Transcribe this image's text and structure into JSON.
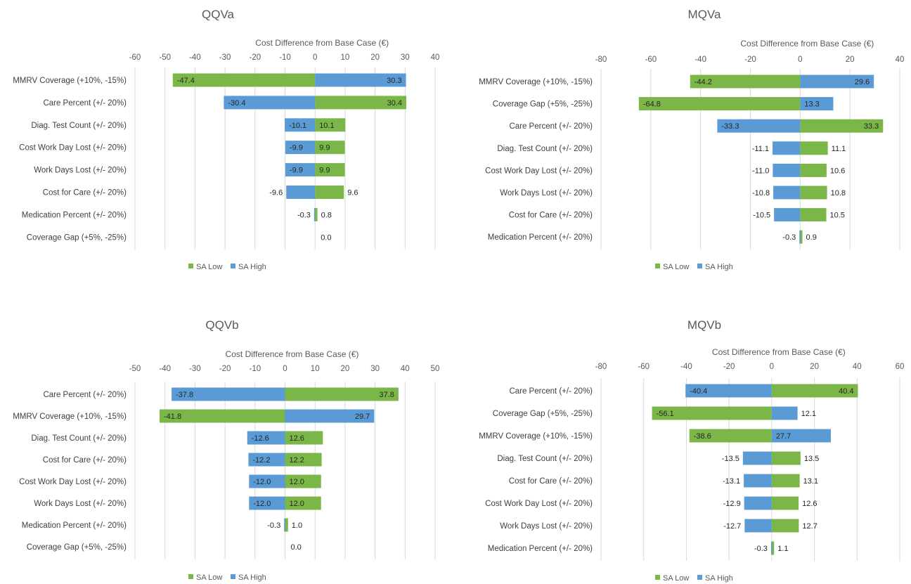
{
  "colors": {
    "low": "#7ab648",
    "high": "#5b9bd5"
  },
  "legend": {
    "low": "SA Low",
    "high": "SA High"
  },
  "chart_data": [
    {
      "type": "bar",
      "orientation": "horizontal-tornado",
      "title": "QQVa",
      "xlabel": "Cost Difference from Base Case (€)",
      "xlim": [
        -60,
        40
      ],
      "ticks": [
        -60,
        -50,
        -40,
        -30,
        -20,
        -10,
        0,
        10,
        20,
        30,
        40
      ],
      "categories": [
        "MMRV Coverage (+10%, -15%)",
        "Care Percent (+/- 20%)",
        "Diag. Test Count (+/- 20%)",
        "Cost Work Day Lost (+/- 20%)",
        "Work Days Lost (+/- 20%)",
        "Cost for Care (+/- 20%)",
        "Medication Percent (+/- 20%)",
        "Coverage Gap (+5%, -25%)"
      ],
      "series": [
        {
          "name": "SA Low",
          "values": [
            -47.4,
            30.4,
            10.1,
            9.9,
            9.9,
            9.6,
            0.8,
            0.0
          ]
        },
        {
          "name": "SA High",
          "values": [
            30.3,
            -30.4,
            -10.1,
            -9.9,
            -9.9,
            -9.6,
            -0.3,
            0.0
          ]
        }
      ],
      "data_labels": [
        [
          "-47.4",
          "30.3"
        ],
        [
          "-30.4",
          "30.4"
        ],
        [
          "-10.1",
          "10.1"
        ],
        [
          "-9.9",
          "9.9"
        ],
        [
          "-9.9",
          "9.9"
        ],
        [
          "-9.6",
          "9.6"
        ],
        [
          "-0.3",
          "0.8"
        ],
        [
          "",
          "0.0"
        ]
      ],
      "legend_position": "bottom-left"
    },
    {
      "type": "bar",
      "orientation": "horizontal-tornado",
      "title": "MQVa",
      "xlabel": "Cost Difference from Base Case (€)",
      "xlim": [
        -80,
        40
      ],
      "ticks": [
        -80,
        -60,
        -40,
        -20,
        0,
        20,
        40
      ],
      "categories": [
        "MMRV Coverage (+10%, -15%)",
        "Coverage Gap (+5%, -25%)",
        "Care Percent (+/- 20%)",
        "Diag. Test Count (+/- 20%)",
        "Cost Work Day Lost (+/- 20%)",
        "Work Days Lost (+/- 20%)",
        "Cost for Care (+/- 20%)",
        "Medication Percent (+/- 20%)"
      ],
      "series": [
        {
          "name": "SA Low",
          "values": [
            -44.2,
            -64.8,
            33.3,
            11.1,
            10.6,
            10.8,
            10.5,
            0.9
          ]
        },
        {
          "name": "SA High",
          "values": [
            29.6,
            13.3,
            -33.3,
            -11.1,
            -11.0,
            -10.8,
            -10.5,
            -0.3
          ]
        }
      ],
      "data_labels": [
        [
          "-44.2",
          "29.6"
        ],
        [
          "-64.8",
          "13.3"
        ],
        [
          "-33.3",
          "33.3"
        ],
        [
          "-11.1",
          "11.1"
        ],
        [
          "-11.0",
          "10.6"
        ],
        [
          "-10.8",
          "10.8"
        ],
        [
          "-10.5",
          "10.5"
        ],
        [
          "-0.3",
          "0.9"
        ]
      ],
      "legend_position": "bottom-left"
    },
    {
      "type": "bar",
      "orientation": "horizontal-tornado",
      "title": "QQVb",
      "xlabel": "Cost Difference from Base Case (€)",
      "xlim": [
        -50,
        50
      ],
      "ticks": [
        -50,
        -40,
        -30,
        -20,
        -10,
        0,
        10,
        20,
        30,
        40,
        50
      ],
      "categories": [
        "Care Percent (+/- 20%)",
        "MMRV Coverage (+10%, -15%)",
        "Diag. Test Count (+/- 20%)",
        "Cost for Care (+/- 20%)",
        "Cost Work Day Lost (+/- 20%)",
        "Work Days Lost (+/- 20%)",
        "Medication Percent (+/- 20%)",
        "Coverage Gap (+5%, -25%)"
      ],
      "series": [
        {
          "name": "SA Low",
          "values": [
            37.8,
            -41.8,
            12.6,
            12.2,
            12.0,
            12.0,
            1.0,
            0.0
          ]
        },
        {
          "name": "SA High",
          "values": [
            -37.8,
            29.7,
            -12.6,
            -12.2,
            -12.0,
            -12.0,
            -0.3,
            0.0
          ]
        }
      ],
      "data_labels": [
        [
          "-37.8",
          "37.8"
        ],
        [
          "-41.8",
          "29.7"
        ],
        [
          "-12.6",
          "12.6"
        ],
        [
          "-12.2",
          "12.2"
        ],
        [
          "-12.0",
          "12.0"
        ],
        [
          "-12.0",
          "12.0"
        ],
        [
          "-0.3",
          "1.0"
        ],
        [
          "",
          "0.0"
        ]
      ],
      "legend_position": "bottom-left"
    },
    {
      "type": "bar",
      "orientation": "horizontal-tornado",
      "title": "MQVb",
      "xlabel": "Cost Difference from Base Case (€)",
      "xlim": [
        -80,
        60
      ],
      "ticks": [
        -80,
        -60,
        -40,
        -20,
        0,
        20,
        40,
        60
      ],
      "categories": [
        "Care Percent (+/- 20%)",
        "Coverage Gap (+5%, -25%)",
        "MMRV Coverage (+10%, -15%)",
        "Diag. Test Count (+/- 20%)",
        "Cost for Care (+/- 20%)",
        "Cost Work Day Lost (+/- 20%)",
        "Work Days Lost (+/- 20%)",
        "Medication Percent (+/- 20%)"
      ],
      "series": [
        {
          "name": "SA Low",
          "values": [
            40.4,
            -56.1,
            -38.6,
            13.5,
            13.1,
            12.6,
            12.7,
            1.1
          ]
        },
        {
          "name": "SA High",
          "values": [
            -40.4,
            12.1,
            27.7,
            -13.5,
            -13.1,
            -12.9,
            -12.7,
            -0.3
          ]
        }
      ],
      "data_labels": [
        [
          "-40.4",
          "40.4"
        ],
        [
          "-56.1",
          "12.1"
        ],
        [
          "-38.6",
          "27.7"
        ],
        [
          "-13.5",
          "13.5"
        ],
        [
          "-13.1",
          "13.1"
        ],
        [
          "-12.9",
          "12.6"
        ],
        [
          "-12.7",
          "12.7"
        ],
        [
          "-0.3",
          "1.1"
        ]
      ],
      "legend_position": "bottom-left"
    }
  ]
}
